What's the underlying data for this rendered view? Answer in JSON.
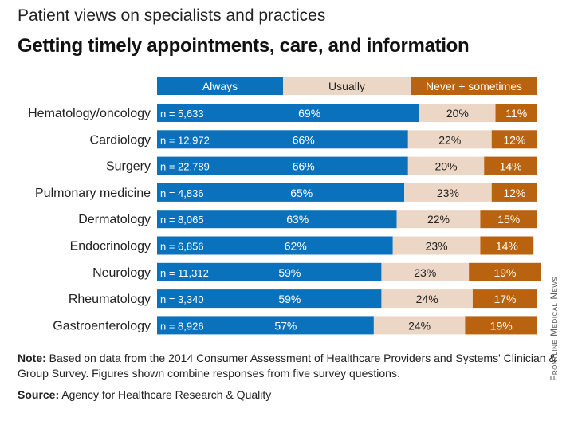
{
  "header": {
    "subtitle": "Patient views on specialists and practices",
    "title": "Getting timely appointments, care, and information"
  },
  "legend": {
    "always": "Always",
    "usually": "Usually",
    "never": "Never + sometimes"
  },
  "colors": {
    "always": "#0a72bd",
    "usually": "#ecd7c6",
    "never": "#b96310"
  },
  "chart_data": {
    "type": "bar",
    "orientation": "horizontal-stacked-100",
    "categories": [
      "Hematology/oncology",
      "Cardiology",
      "Surgery",
      "Pulmonary medicine",
      "Dermatology",
      "Endocrinology",
      "Neurology",
      "Rheumatology",
      "Gastroenterology"
    ],
    "sample_sizes": [
      "n = 5,633",
      "n = 12,972",
      "n = 22,789",
      "n = 4,836",
      "n = 8,065",
      "n = 6,856",
      "n = 11,312",
      "n =  3,340",
      "n = 8,926"
    ],
    "series": [
      {
        "name": "Always",
        "values": [
          69,
          66,
          66,
          65,
          63,
          62,
          59,
          59,
          57
        ]
      },
      {
        "name": "Usually",
        "values": [
          20,
          22,
          20,
          23,
          22,
          23,
          23,
          24,
          24
        ]
      },
      {
        "name": "Never + sometimes",
        "values": [
          11,
          12,
          14,
          12,
          15,
          14,
          19,
          17,
          19
        ]
      }
    ],
    "value_suffix": "%",
    "xlim": [
      0,
      100
    ],
    "grid": false,
    "legend_position": "top"
  },
  "footer": {
    "note_label": "Note:",
    "note_text": " Based on data from the 2014 Consumer Assessment of Healthcare Providers and Systems' Clinician & Group Survey. Figures shown combine responses from five survey questions.",
    "source_label": "Source:",
    "source_text": " Agency for Healthcare Research & Quality",
    "credit": "Frontline Medical News"
  }
}
